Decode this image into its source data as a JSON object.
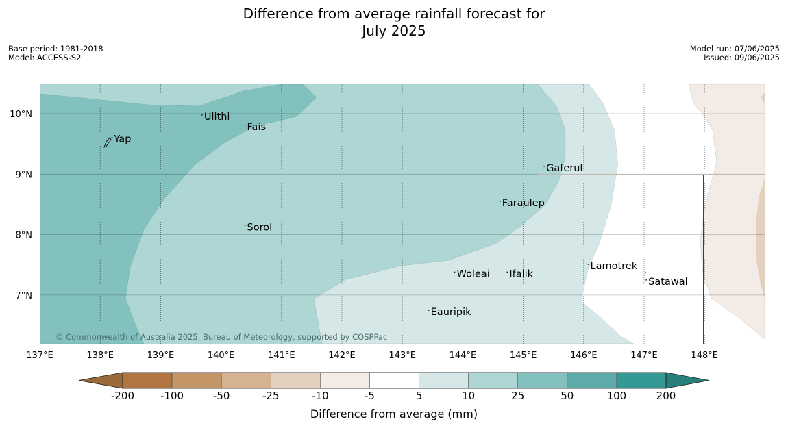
{
  "title_line1": "Difference from average rainfall forecast for",
  "title_line2": "July 2025",
  "meta_left": {
    "base_period": "Base period: 1981-2018",
    "model": "Model: ACCESS-S2"
  },
  "meta_right": {
    "model_run": "Model run: 07/06/2025",
    "issued": "Issued: 09/06/2025"
  },
  "copyright": "© Commonwealth of Australia 2025, Bureau of Meteorology, supported by COSPPac",
  "lon_labels": [
    "137°E",
    "138°E",
    "139°E",
    "140°E",
    "141°E",
    "142°E",
    "143°E",
    "144°E",
    "145°E",
    "146°E",
    "147°E",
    "148°E"
  ],
  "lat_labels": [
    "10°N",
    "9°N",
    "8°N",
    "7°N"
  ],
  "places": [
    {
      "name": "Ulithi"
    },
    {
      "name": "Fais"
    },
    {
      "name": "Yap"
    },
    {
      "name": "Gaferut"
    },
    {
      "name": "Faraulep"
    },
    {
      "name": "Sorol"
    },
    {
      "name": "Lamotrek"
    },
    {
      "name": "Woleai"
    },
    {
      "name": "Ifalik"
    },
    {
      "name": "Satawal"
    },
    {
      "name": "Eauripik"
    }
  ],
  "colorbar": {
    "label": "Difference from average (mm)",
    "ticks": [
      "-200",
      "-100",
      "-50",
      "-25",
      "-10",
      "-5",
      "5",
      "10",
      "25",
      "50",
      "100",
      "200"
    ],
    "colors": [
      "#9c6a3a",
      "#b07540",
      "#c49566",
      "#d5b390",
      "#e4d0be",
      "#f3ece6",
      "#ffffff",
      "#d5e8e7",
      "#add6d5",
      "#83c1bf",
      "#5caba8",
      "#359a96",
      "#28807d"
    ]
  }
}
